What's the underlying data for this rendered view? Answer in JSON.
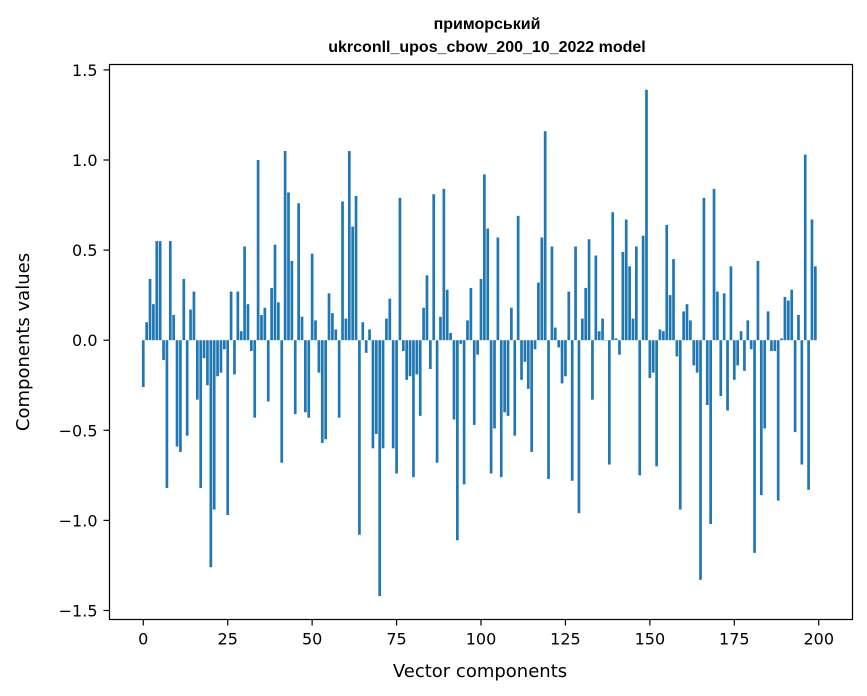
{
  "chart_data": {
    "type": "bar",
    "title_line1": "приморський",
    "title_line2": "ukrconll_upos_cbow_200_10_2022 model",
    "xlabel": "Vector components",
    "ylabel": "Components values",
    "xlim": [
      -10,
      210
    ],
    "ylim": [
      -1.55,
      1.53
    ],
    "x_ticks": [
      {
        "value": 0,
        "label": "0"
      },
      {
        "value": 25,
        "label": "25"
      },
      {
        "value": 50,
        "label": "50"
      },
      {
        "value": 75,
        "label": "75"
      },
      {
        "value": 100,
        "label": "100"
      },
      {
        "value": 125,
        "label": "125"
      },
      {
        "value": 150,
        "label": "150"
      },
      {
        "value": 175,
        "label": "175"
      },
      {
        "value": 200,
        "label": "200"
      }
    ],
    "y_ticks": [
      {
        "value": 1.5,
        "label": "1.5"
      },
      {
        "value": 1.0,
        "label": "1.0"
      },
      {
        "value": 0.5,
        "label": "0.5"
      },
      {
        "value": 0.0,
        "label": "0.0"
      },
      {
        "value": -0.5,
        "label": "−0.5"
      },
      {
        "value": -1.0,
        "label": "−1.0"
      },
      {
        "value": -1.5,
        "label": "−1.5"
      }
    ],
    "grid": false,
    "bar_color": "#1f77b4",
    "values": [
      -0.26,
      0.1,
      0.34,
      0.2,
      0.55,
      0.55,
      -0.11,
      -0.82,
      0.55,
      0.14,
      -0.59,
      -0.62,
      0.34,
      -0.53,
      0.17,
      0.27,
      -0.33,
      -0.82,
      -0.1,
      -0.25,
      -1.26,
      -0.94,
      -0.2,
      -0.18,
      -0.05,
      -0.97,
      0.27,
      -0.19,
      0.27,
      0.05,
      0.52,
      0.2,
      -0.06,
      -0.43,
      1.0,
      0.14,
      0.18,
      -0.34,
      0.29,
      0.53,
      0.21,
      -0.68,
      1.05,
      0.82,
      0.44,
      -0.41,
      0.76,
      0.13,
      -0.4,
      -0.43,
      0.48,
      0.11,
      -0.18,
      -0.57,
      -0.55,
      0.26,
      0.15,
      0.06,
      -0.43,
      0.77,
      0.12,
      1.05,
      0.63,
      0.8,
      -1.08,
      0.1,
      -0.07,
      0.06,
      -0.6,
      -0.52,
      -1.42,
      -0.6,
      0.12,
      0.23,
      -0.6,
      -0.74,
      0.79,
      -0.06,
      -0.22,
      -0.2,
      -0.76,
      -0.19,
      -0.42,
      0.18,
      0.36,
      -0.16,
      0.81,
      -0.68,
      0.13,
      0.84,
      0.28,
      0.04,
      -0.44,
      -1.11,
      -0.02,
      -0.8,
      0.11,
      0.29,
      -0.47,
      -0.08,
      0.34,
      0.92,
      0.62,
      -0.74,
      -0.49,
      0.57,
      -0.76,
      -0.4,
      -0.42,
      0.18,
      -0.53,
      0.69,
      -0.22,
      -0.12,
      -0.27,
      -0.62,
      -0.05,
      0.32,
      0.57,
      1.16,
      -0.77,
      0.52,
      0.07,
      -0.04,
      -0.24,
      -0.2,
      0.27,
      -0.78,
      0.52,
      -0.96,
      0.12,
      0.29,
      0.56,
      -0.33,
      0.47,
      0.05,
      0.12,
      0.0,
      -0.69,
      0.71,
      0.01,
      -0.08,
      0.49,
      0.67,
      0.41,
      0.12,
      0.52,
      -0.75,
      0.58,
      1.39,
      -0.21,
      -0.18,
      -0.7,
      0.06,
      0.05,
      0.64,
      0.25,
      0.45,
      -0.09,
      -0.94,
      0.16,
      0.2,
      0.11,
      -0.14,
      -0.18,
      -1.33,
      0.79,
      -0.36,
      -1.02,
      0.84,
      0.27,
      -0.31,
      0.26,
      -0.39,
      0.41,
      -0.22,
      -0.14,
      0.05,
      -0.17,
      0.11,
      -0.05,
      -1.18,
      0.44,
      -0.86,
      -0.49,
      0.16,
      -0.06,
      -0.06,
      -0.89,
      0.01,
      0.24,
      0.22,
      0.28,
      -0.51,
      0.14,
      -0.69,
      1.03,
      -0.83,
      0.67,
      0.41
    ]
  }
}
